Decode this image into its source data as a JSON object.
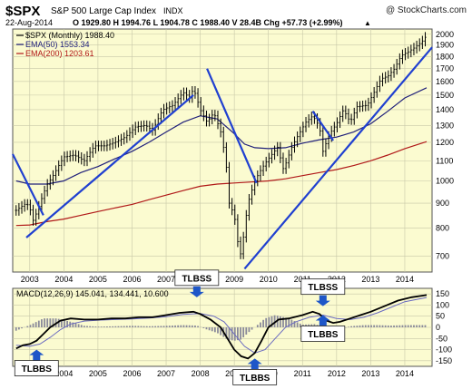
{
  "header": {
    "symbol": "$SPX",
    "name": "S&P 500 Large Cap Index",
    "exchange": "INDX",
    "watermark": "@ StockCharts.com",
    "date": "22-Aug-2014",
    "quote": "O 1929.80  H 1994.76  L 1904.78  C 1988.40  V 28.4B  Chg +57.73 (+2.99%)",
    "quote_arrow": "▲"
  },
  "legend": {
    "price": "$SPX (Monthly) 1988.40",
    "ema50": "EMA(50) 1553.34",
    "ema200": "EMA(200) 1203.61"
  },
  "macd_legend": "MACD(12,26,9) 145.041, 134.441, 10.600",
  "annotations": [
    {
      "label": "TLBSS",
      "year": 2007.9,
      "value": 135,
      "dir": "down"
    },
    {
      "label": "TLBSS",
      "year": 2011.6,
      "value": 95,
      "dir": "down"
    },
    {
      "label": "TLBBS",
      "year": 2003.2,
      "value": -100,
      "dir": "up"
    },
    {
      "label": "TLBBS",
      "year": 2009.6,
      "value": -140,
      "dir": "up"
    },
    {
      "label": "TLBBS",
      "year": 2011.6,
      "value": 55,
      "dir": "up"
    }
  ],
  "colors": {
    "bg": "#fbfbd0",
    "price": "#000000",
    "ema50": "#20207a",
    "ema200": "#b01818",
    "trendline": "#2040d0",
    "histogram": "#8a8a9a",
    "signal": "#6a6ac0",
    "arrow": "#1e56c8"
  },
  "chart_data": [
    {
      "type": "line",
      "title": "$SPX S&P 500 Large Cap Index INDX",
      "x_ticks": [
        2003,
        2004,
        2005,
        2006,
        2007,
        2008,
        2009,
        2010,
        2011,
        2012,
        2013,
        2014
      ],
      "y_ticks": [
        700,
        800,
        900,
        1000,
        1100,
        1200,
        1300,
        1400,
        1500,
        1600,
        1700,
        1800,
        1900,
        2000
      ],
      "ylim": [
        650,
        2050
      ],
      "scale": "log",
      "grid": true,
      "legend_position": "top-left",
      "series": [
        {
          "name": "$SPX (Monthly) 1988.40",
          "points": [
            [
              2002.6,
              870
            ],
            [
              2002.8,
              890
            ],
            [
              2002.9,
              900
            ],
            [
              2003.0,
              880
            ],
            [
              2003.1,
              830
            ],
            [
              2003.2,
              860
            ],
            [
              2003.3,
              900
            ],
            [
              2003.5,
              980
            ],
            [
              2003.7,
              1030
            ],
            [
              2004.0,
              1120
            ],
            [
              2004.3,
              1130
            ],
            [
              2004.6,
              1100
            ],
            [
              2004.9,
              1180
            ],
            [
              2005.2,
              1180
            ],
            [
              2005.5,
              1200
            ],
            [
              2005.8,
              1230
            ],
            [
              2006.1,
              1290
            ],
            [
              2006.4,
              1300
            ],
            [
              2006.6,
              1270
            ],
            [
              2006.9,
              1400
            ],
            [
              2007.2,
              1430
            ],
            [
              2007.5,
              1520
            ],
            [
              2007.7,
              1480
            ],
            [
              2007.8,
              1550
            ],
            [
              2008.0,
              1400
            ],
            [
              2008.2,
              1320
            ],
            [
              2008.4,
              1380
            ],
            [
              2008.6,
              1260
            ],
            [
              2008.75,
              1100
            ],
            [
              2008.85,
              900
            ],
            [
              2009.0,
              850
            ],
            [
              2009.1,
              750
            ],
            [
              2009.2,
              700
            ],
            [
              2009.4,
              900
            ],
            [
              2009.6,
              1000
            ],
            [
              2009.8,
              1060
            ],
            [
              2010.0,
              1110
            ],
            [
              2010.3,
              1180
            ],
            [
              2010.4,
              1050
            ],
            [
              2010.5,
              1080
            ],
            [
              2010.7,
              1180
            ],
            [
              2010.9,
              1250
            ],
            [
              2011.1,
              1320
            ],
            [
              2011.3,
              1360
            ],
            [
              2011.5,
              1290
            ],
            [
              2011.6,
              1150
            ],
            [
              2011.8,
              1250
            ],
            [
              2012.0,
              1310
            ],
            [
              2012.2,
              1400
            ],
            [
              2012.4,
              1320
            ],
            [
              2012.6,
              1420
            ],
            [
              2012.9,
              1430
            ],
            [
              2013.1,
              1520
            ],
            [
              2013.3,
              1620
            ],
            [
              2013.5,
              1640
            ],
            [
              2013.7,
              1700
            ],
            [
              2013.9,
              1810
            ],
            [
              2014.1,
              1840
            ],
            [
              2014.3,
              1880
            ],
            [
              2014.5,
              1930
            ],
            [
              2014.64,
              1988
            ]
          ]
        },
        {
          "name": "EMA(50) 1553.34",
          "points": [
            [
              2002.6,
              1000
            ],
            [
              2003.0,
              985
            ],
            [
              2003.5,
              985
            ],
            [
              2004.0,
              1000
            ],
            [
              2004.5,
              1040
            ],
            [
              2005.0,
              1070
            ],
            [
              2005.5,
              1110
            ],
            [
              2006.0,
              1150
            ],
            [
              2006.5,
              1200
            ],
            [
              2007.0,
              1260
            ],
            [
              2007.5,
              1320
            ],
            [
              2008.0,
              1360
            ],
            [
              2008.5,
              1340
            ],
            [
              2009.0,
              1250
            ],
            [
              2009.3,
              1190
            ],
            [
              2009.6,
              1170
            ],
            [
              2010.0,
              1165
            ],
            [
              2010.5,
              1170
            ],
            [
              2011.0,
              1195
            ],
            [
              2011.5,
              1215
            ],
            [
              2012.0,
              1230
            ],
            [
              2012.5,
              1260
            ],
            [
              2013.0,
              1310
            ],
            [
              2013.5,
              1390
            ],
            [
              2014.0,
              1480
            ],
            [
              2014.64,
              1553
            ]
          ]
        },
        {
          "name": "EMA(200) 1203.61",
          "points": [
            [
              2002.6,
              810
            ],
            [
              2003.0,
              812
            ],
            [
              2003.5,
              825
            ],
            [
              2004.0,
              835
            ],
            [
              2004.5,
              850
            ],
            [
              2005.0,
              865
            ],
            [
              2005.5,
              880
            ],
            [
              2006.0,
              895
            ],
            [
              2006.5,
              915
            ],
            [
              2007.0,
              935
            ],
            [
              2007.5,
              955
            ],
            [
              2008.0,
              975
            ],
            [
              2008.5,
              985
            ],
            [
              2009.0,
              990
            ],
            [
              2009.5,
              995
            ],
            [
              2010.0,
              1000
            ],
            [
              2010.5,
              1010
            ],
            [
              2011.0,
              1025
            ],
            [
              2011.5,
              1040
            ],
            [
              2012.0,
              1055
            ],
            [
              2012.5,
              1075
            ],
            [
              2013.0,
              1100
            ],
            [
              2013.5,
              1130
            ],
            [
              2014.0,
              1165
            ],
            [
              2014.64,
              1204
            ]
          ]
        }
      ]
    },
    {
      "type": "line",
      "title": "MACD(12,26,9) 145.041, 134.441, 10.600",
      "x_ticks": [
        2003,
        2004,
        2005,
        2006,
        2007,
        2008,
        2009,
        2010,
        2011,
        2012,
        2013,
        2014
      ],
      "y_ticks": [
        -150,
        -100,
        -50,
        0,
        50,
        100,
        150
      ],
      "ylim": [
        -175,
        175
      ],
      "grid": true,
      "series": [
        {
          "name": "MACD",
          "points": [
            [
              2002.6,
              -95
            ],
            [
              2002.8,
              -80
            ],
            [
              2003.0,
              -75
            ],
            [
              2003.2,
              -60
            ],
            [
              2003.4,
              -30
            ],
            [
              2003.6,
              0
            ],
            [
              2003.9,
              30
            ],
            [
              2004.2,
              40
            ],
            [
              2004.6,
              35
            ],
            [
              2005.0,
              35
            ],
            [
              2005.4,
              40
            ],
            [
              2005.8,
              40
            ],
            [
              2006.2,
              45
            ],
            [
              2006.6,
              45
            ],
            [
              2007.0,
              55
            ],
            [
              2007.4,
              65
            ],
            [
              2007.8,
              70
            ],
            [
              2008.0,
              60
            ],
            [
              2008.3,
              35
            ],
            [
              2008.6,
              0
            ],
            [
              2008.8,
              -50
            ],
            [
              2009.0,
              -100
            ],
            [
              2009.2,
              -130
            ],
            [
              2009.4,
              -140
            ],
            [
              2009.6,
              -115
            ],
            [
              2009.8,
              -60
            ],
            [
              2010.0,
              0
            ],
            [
              2010.3,
              35
            ],
            [
              2010.6,
              40
            ],
            [
              2011.0,
              55
            ],
            [
              2011.3,
              70
            ],
            [
              2011.5,
              60
            ],
            [
              2011.7,
              30
            ],
            [
              2011.9,
              20
            ],
            [
              2012.1,
              25
            ],
            [
              2012.4,
              40
            ],
            [
              2012.7,
              55
            ],
            [
              2013.0,
              70
            ],
            [
              2013.4,
              95
            ],
            [
              2013.8,
              120
            ],
            [
              2014.2,
              135
            ],
            [
              2014.64,
              145
            ]
          ]
        },
        {
          "name": "Signal",
          "points": [
            [
              2002.6,
              -80
            ],
            [
              2003.0,
              -85
            ],
            [
              2003.3,
              -75
            ],
            [
              2003.6,
              -45
            ],
            [
              2003.9,
              -10
            ],
            [
              2004.2,
              15
            ],
            [
              2004.6,
              28
            ],
            [
              2005.0,
              32
            ],
            [
              2005.5,
              35
            ],
            [
              2006.0,
              38
            ],
            [
              2006.5,
              42
            ],
            [
              2007.0,
              48
            ],
            [
              2007.5,
              58
            ],
            [
              2008.0,
              62
            ],
            [
              2008.4,
              50
            ],
            [
              2008.7,
              25
            ],
            [
              2009.0,
              -30
            ],
            [
              2009.3,
              -85
            ],
            [
              2009.6,
              -115
            ],
            [
              2009.9,
              -100
            ],
            [
              2010.2,
              -50
            ],
            [
              2010.5,
              0
            ],
            [
              2010.8,
              25
            ],
            [
              2011.2,
              45
            ],
            [
              2011.6,
              55
            ],
            [
              2012.0,
              40
            ],
            [
              2012.4,
              35
            ],
            [
              2012.8,
              45
            ],
            [
              2013.2,
              65
            ],
            [
              2013.6,
              90
            ],
            [
              2014.0,
              115
            ],
            [
              2014.64,
              134
            ]
          ]
        },
        {
          "name": "Histogram",
          "points": [
            [
              2002.6,
              -15
            ],
            [
              2003.0,
              10
            ],
            [
              2003.4,
              40
            ],
            [
              2003.8,
              40
            ],
            [
              2004.2,
              25
            ],
            [
              2004.6,
              7
            ],
            [
              2005.0,
              3
            ],
            [
              2005.5,
              5
            ],
            [
              2006.0,
              7
            ],
            [
              2006.5,
              5
            ],
            [
              2007.0,
              7
            ],
            [
              2007.5,
              10
            ],
            [
              2007.9,
              8
            ],
            [
              2008.2,
              -10
            ],
            [
              2008.5,
              -25
            ],
            [
              2008.8,
              -55
            ],
            [
              2009.0,
              -60
            ],
            [
              2009.2,
              -55
            ],
            [
              2009.4,
              -25
            ],
            [
              2009.6,
              0
            ],
            [
              2009.9,
              40
            ],
            [
              2010.2,
              55
            ],
            [
              2010.6,
              40
            ],
            [
              2011.0,
              12
            ],
            [
              2011.4,
              15
            ],
            [
              2011.7,
              -20
            ],
            [
              2012.0,
              -15
            ],
            [
              2012.4,
              5
            ],
            [
              2012.8,
              10
            ],
            [
              2013.2,
              10
            ],
            [
              2013.6,
              8
            ],
            [
              2014.0,
              10
            ],
            [
              2014.64,
              10
            ]
          ]
        }
      ]
    }
  ]
}
